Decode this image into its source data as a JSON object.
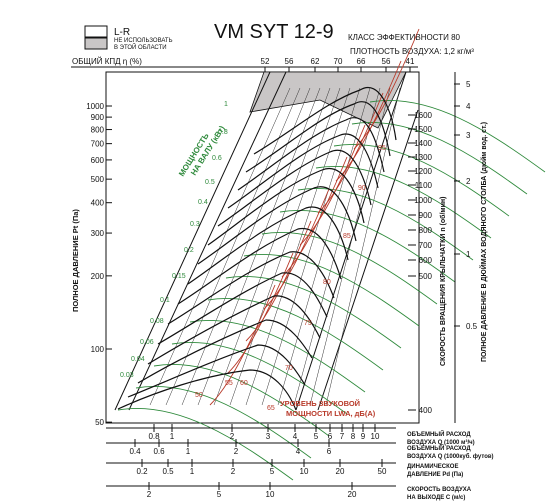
{
  "chart_data": {
    "type": "line",
    "title": "VM  SYT 12-9",
    "efficiency_class": "КЛАСС ЭФФЕКТИВНОСТИ 80",
    "air_density": "ПЛОТНОСТЬ ВОЗДУХА: 1,2 кг/м³",
    "legend": {
      "items": [
        {
          "label": "L-R",
          "fill": "#ffffff"
        },
        {
          "label": "НЕ ИСПОЛЬЗОВАТЬ В ЭТОЙ ОБЛАСТИ",
          "fill": "#c9c6c6"
        }
      ]
    },
    "efficiency_label": "ОБЩИЙ КПД η (%)",
    "efficiency_ticks": [
      "52",
      "56",
      "62",
      "70",
      "66",
      "56",
      "41"
    ],
    "y_left_label": "ПОЛНОЕ ДАВЛЕНИЕ Pt (Па)",
    "y_left_ticks": [
      "1000",
      "900",
      "800",
      "700",
      "600",
      "500",
      "400",
      "300",
      "200",
      "100",
      "50"
    ],
    "y_left_ticks_values": [
      1000,
      900,
      800,
      700,
      600,
      500,
      400,
      300,
      200,
      100,
      50
    ],
    "y_left_range": [
      50,
      1150
    ],
    "rpm_label": "СКОРОСТЬ ВРАЩЕНИЯ КРЫЛЬЧАТКИ  n (об/мин)",
    "rpm_ticks": [
      "1600",
      "1500",
      "1400",
      "1300",
      "1200",
      "1100",
      "1000",
      "900",
      "800",
      "700",
      "600",
      "500",
      "400"
    ],
    "rpm_ticks_values": [
      1600,
      1500,
      1400,
      1300,
      1200,
      1100,
      1000,
      900,
      800,
      700,
      600,
      500,
      400
    ],
    "y_right_label": "ПОЛНОЕ ДАВЛЕНИЕ В ДЮЙМАХ ВОДЯНОГО СТОЛБА (дюйм вод. ст.)",
    "y_right_ticks": [
      "5",
      "4",
      "3",
      "2",
      "1",
      "0.5"
    ],
    "y_right_ticks_values": [
      5,
      4,
      3,
      2,
      1,
      0.5
    ],
    "power_label": "МОЩНОСТЬ НА ВАЛУ (кВт)",
    "power_values": [
      "1",
      "0.8",
      "0.6",
      "0.5",
      "0.4",
      "0.3",
      "0.2",
      "0.15",
      "0.1",
      "0.08",
      "0.06",
      "0.04",
      "0.03"
    ],
    "noise_label": "УРОВЕНЬ ЗВУКОВОЙ МОЩНОСТИ LWA, дБ(А)",
    "noise_values": [
      "95",
      "90",
      "85",
      "80",
      "75",
      "70",
      "65",
      "60",
      "55",
      "50"
    ],
    "bottom_axes": [
      {
        "label": "ОБЪЕМНЫЙ РАСХОД ВОЗДУХА Q (1000 м³/ч)",
        "ticks": [
          "0.8",
          "1",
          "2",
          "3",
          "4",
          "5",
          "6",
          "7",
          "8",
          "9",
          "10"
        ]
      },
      {
        "label": "ОБЪЕМНЫЙ РАСХОД ВОЗДУХА Q (1000 куб. футов)",
        "ticks": [
          "0.4",
          "0.6",
          "1",
          "2",
          "4",
          "6"
        ]
      },
      {
        "label": "ДИНАМИЧЕСКОЕ ДАВЛЕНИЕ Pd (Па)",
        "ticks": [
          "0.2",
          "0.5",
          "1",
          "2",
          "5",
          "10",
          "20",
          "50"
        ]
      },
      {
        "label": "СКОРОСТЬ ВОЗДУХА НА ВЫХОДЕ C (м/с)",
        "ticks": [
          "2",
          "5",
          "10",
          "20"
        ]
      }
    ],
    "colors": {
      "power": "#2f8a3c",
      "noise": "#b83a2a",
      "rpm": "#111111",
      "shade": "#c9c6c6",
      "grid": "#222222"
    }
  }
}
